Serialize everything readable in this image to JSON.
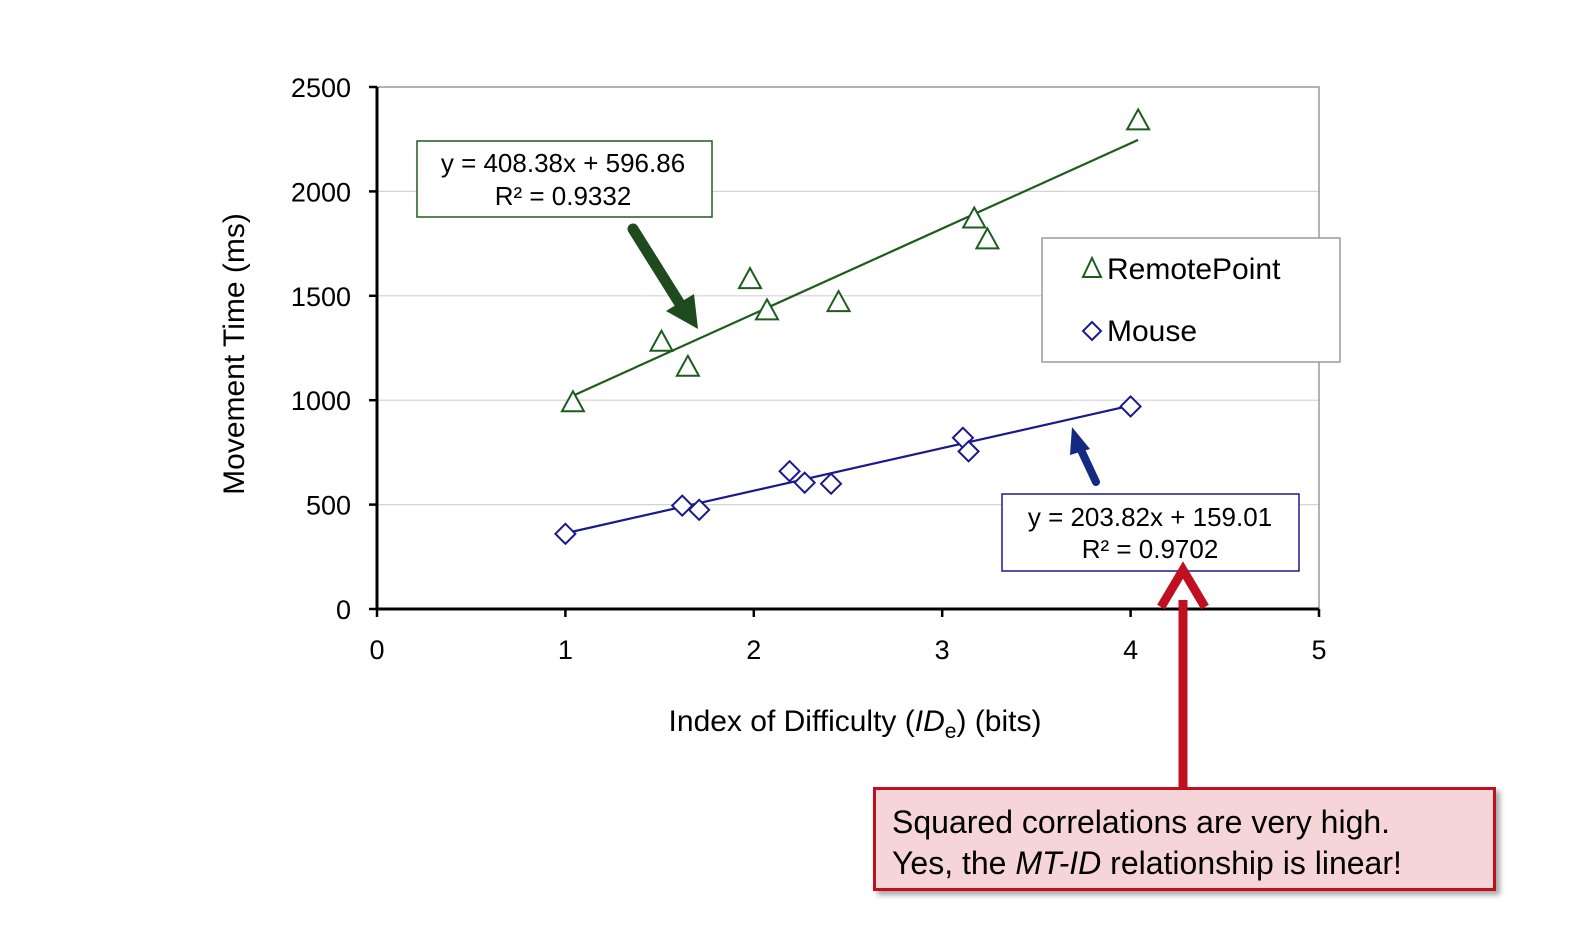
{
  "chart_data": {
    "type": "scatter",
    "xlabel": {
      "prefix": "Index of Difficulty (",
      "italic": "ID",
      "sub": "e",
      "suffix": ") (bits)"
    },
    "ylabel": "Movement Time (ms)",
    "xlim": [
      0,
      5
    ],
    "ylim": [
      0,
      2500
    ],
    "xticks": [
      "0",
      "1",
      "2",
      "3",
      "4",
      "5"
    ],
    "yticks": [
      "0",
      "500",
      "1000",
      "1500",
      "2000",
      "2500"
    ],
    "grid": "horizontal",
    "legend_position": "right",
    "series": [
      {
        "name": "RemotePoint",
        "marker": "triangle",
        "color": "#1e5c1e",
        "x": [
          1.04,
          1.51,
          1.65,
          1.98,
          2.07,
          2.45,
          3.17,
          3.24,
          4.04
        ],
        "y": [
          990,
          1280,
          1160,
          1580,
          1430,
          1470,
          1870,
          1770,
          2340
        ],
        "trendline": {
          "slope": 408.38,
          "intercept": 596.86,
          "x_range": [
            1.04,
            4.04
          ]
        },
        "equation": "y = 408.38x + 596.86",
        "r2": "R² = 0.9332"
      },
      {
        "name": "Mouse",
        "marker": "diamond",
        "color": "#1a1a8c",
        "x": [
          1.0,
          1.62,
          1.71,
          2.19,
          2.27,
          2.41,
          3.11,
          3.14,
          4.0
        ],
        "y": [
          360,
          495,
          475,
          660,
          605,
          600,
          820,
          755,
          970
        ],
        "trendline": {
          "slope": 203.82,
          "intercept": 159.01,
          "x_range": [
            1.0,
            4.0
          ]
        },
        "equation": "y = 203.82x + 159.01",
        "r2": "R² = 0.9702"
      }
    ]
  },
  "callout": {
    "line1": "Squared correlations are very high.",
    "line2_prefix": "Yes, the ",
    "line2_italic": "MT-ID",
    "line2_suffix": " relationship is linear!"
  },
  "colors": {
    "arrow_green": "#1e4a1e",
    "arrow_blue": "#142a80",
    "arrow_red": "#c0101f"
  }
}
